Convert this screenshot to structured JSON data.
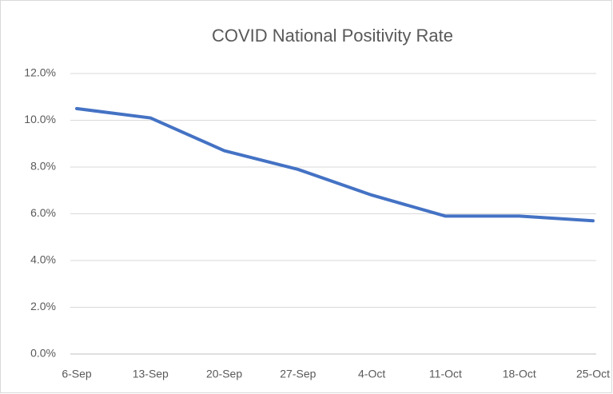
{
  "chart_data": {
    "type": "line",
    "title": "COVID National Positivity Rate",
    "categories": [
      "6-Sep",
      "13-Sep",
      "20-Sep",
      "27-Sep",
      "4-Oct",
      "11-Oct",
      "18-Oct",
      "25-Oct"
    ],
    "series": [
      {
        "name": "Positivity Rate",
        "color": "#4472c4",
        "values": [
          10.5,
          10.1,
          8.7,
          7.9,
          6.8,
          5.9,
          5.9,
          5.7
        ]
      }
    ],
    "ylim": [
      0,
      12
    ],
    "yticks": [
      {
        "value": 0,
        "label": "0.0%"
      },
      {
        "value": 2,
        "label": "2.0%"
      },
      {
        "value": 4,
        "label": "4.0%"
      },
      {
        "value": 6,
        "label": "6.0%"
      },
      {
        "value": 8,
        "label": "8.0%"
      },
      {
        "value": 10,
        "label": "10.0%"
      },
      {
        "value": 12,
        "label": "12.0%"
      }
    ],
    "grid": true
  }
}
